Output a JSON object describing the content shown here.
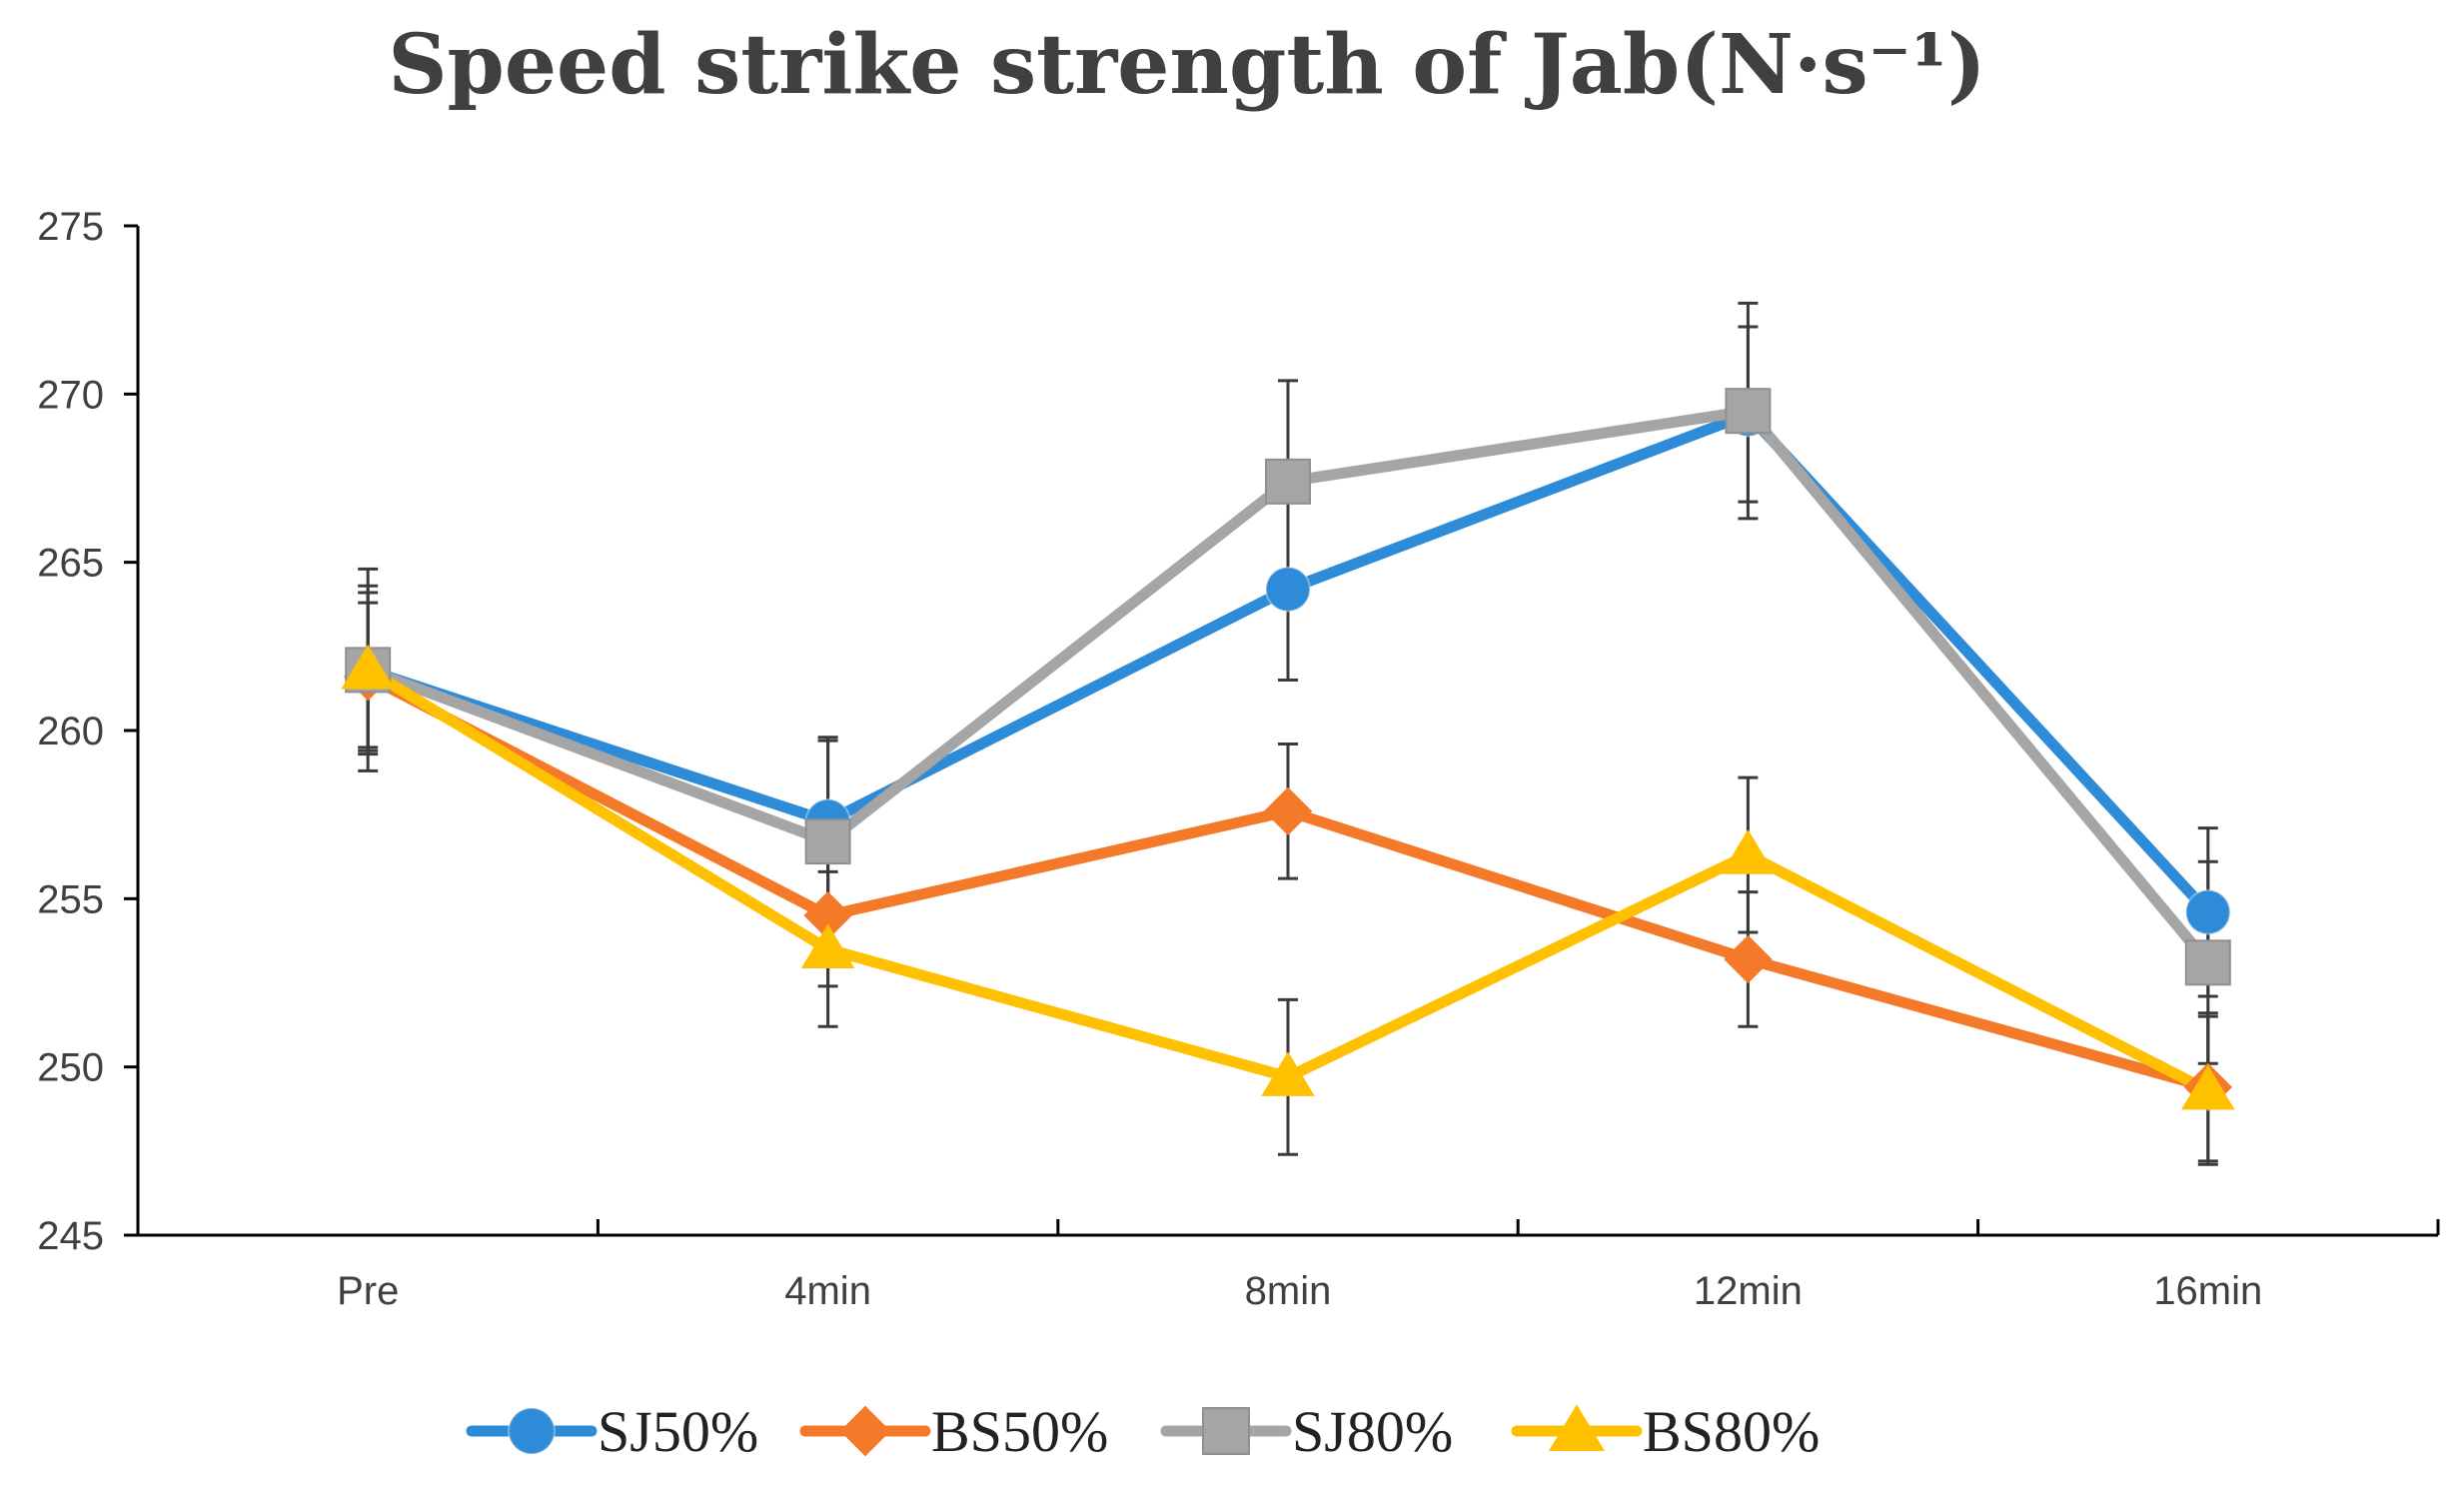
{
  "chart_data": {
    "type": "line",
    "title": "Speed strike strength of Jab(N·s⁻¹)",
    "xlabel": "",
    "ylabel": "",
    "categories": [
      "Pre",
      "4min",
      "8min",
      "12min",
      "16min"
    ],
    "ylim": [
      245,
      275
    ],
    "yticks": [
      245,
      250,
      255,
      260,
      265,
      270,
      275
    ],
    "grid": false,
    "legend_position": "bottom",
    "error_bars": true,
    "series": [
      {
        "name": "SJ50%",
        "color": "#2E8BD8",
        "marker": "circle",
        "values": [
          261.8,
          257.3,
          264.2,
          269.4,
          254.6
        ],
        "errors": [
          2.5,
          2.5,
          2.7,
          2.6,
          2.5
        ]
      },
      {
        "name": "BS50%",
        "color": "#F47A2A",
        "marker": "diamond",
        "values": [
          261.6,
          254.5,
          257.6,
          253.2,
          249.4
        ],
        "errors": [
          2.2,
          2.1,
          2.0,
          2.0,
          2.2
        ]
      },
      {
        "name": "SJ80%",
        "color": "#A5A5A5",
        "marker": "square",
        "values": [
          261.8,
          256.7,
          267.4,
          269.5,
          253.1
        ],
        "errors": [
          3.0,
          3.0,
          3.0,
          3.2,
          3.0
        ]
      },
      {
        "name": "BS80%",
        "color": "#FFC000",
        "marker": "triangle",
        "values": [
          261.8,
          253.5,
          249.7,
          256.3,
          249.3
        ],
        "errors": [
          2.3,
          2.3,
          2.3,
          2.3,
          2.2
        ]
      }
    ]
  }
}
